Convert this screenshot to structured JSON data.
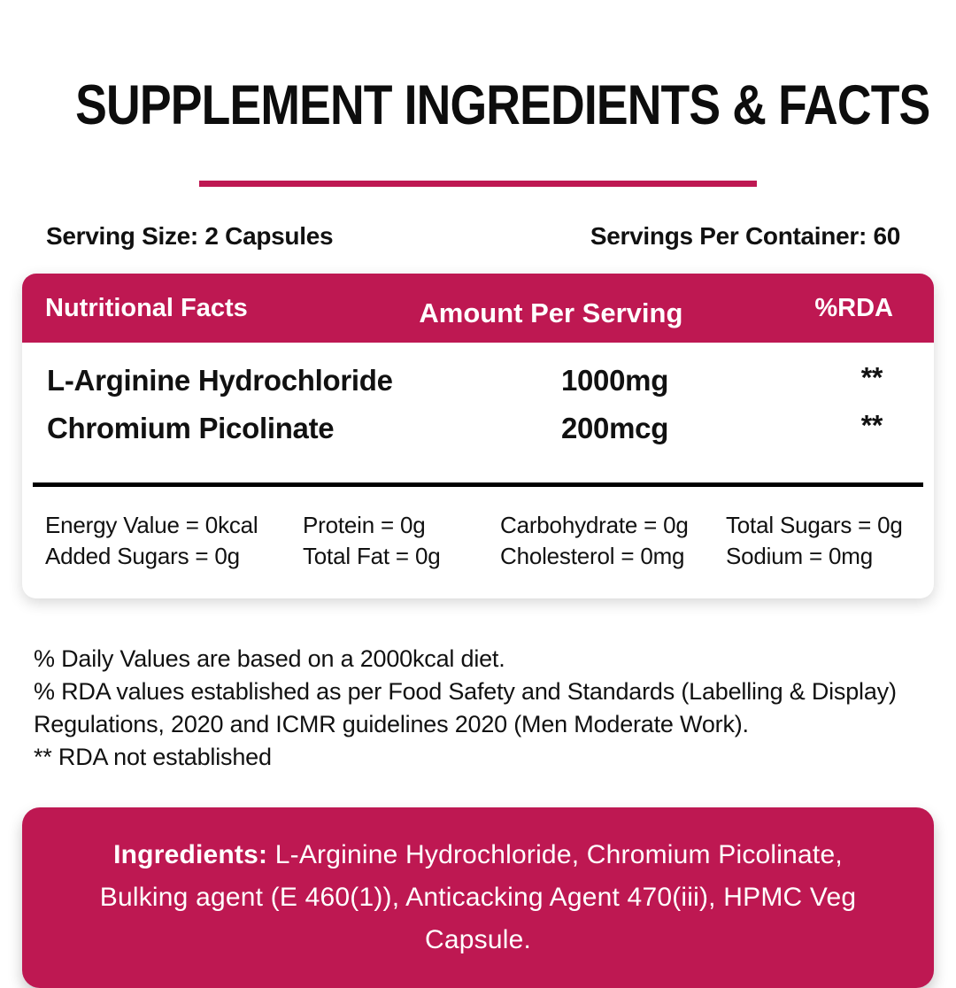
{
  "page": {
    "title": "SUPPLEMENT INGREDIENTS & FACTS",
    "serving_size": "Serving Size: 2 Capsules",
    "servings_per_container": "Servings Per Container: 60"
  },
  "table": {
    "header": {
      "nutritional_facts": "Nutritional Facts",
      "amount_per_serving": "Amount Per Serving",
      "rda": "%RDA"
    },
    "rows": [
      {
        "name": "L-Arginine Hydrochloride",
        "amount": "1000mg",
        "rda": "**"
      },
      {
        "name": "Chromium Picolinate",
        "amount": "200mcg",
        "rda": "**"
      }
    ],
    "nutrition_grid": [
      [
        "Energy Value = 0kcal",
        "Protein = 0g",
        "Carbohydrate = 0g",
        "Total Sugars = 0g"
      ],
      [
        "Added Sugars = 0g",
        "Total Fat = 0g",
        "Cholesterol = 0mg",
        "Sodium = 0mg"
      ]
    ]
  },
  "footnotes": [
    "% Daily Values are based on a 2000kcal diet.",
    "% RDA values established as per Food Safety and Standards (Labelling & Display) Regulations, 2020 and ICMR guidelines 2020 (Men Moderate Work).",
    "** RDA not established"
  ],
  "ingredients": {
    "label": "Ingredients:",
    "text": " L-Arginine Hydrochloride, Chromium Picolinate, Bulking agent (E 460(1)), Anticacking Agent 470(iii), HPMC Veg Capsule."
  },
  "colors": {
    "accent": "#BE1852",
    "text": "#111111",
    "header_text": "#ffffff"
  }
}
